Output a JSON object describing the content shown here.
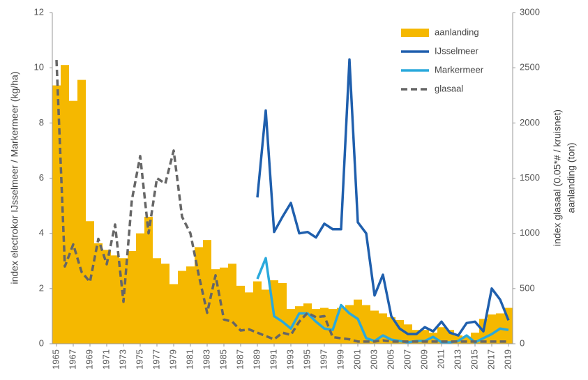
{
  "chart_data": {
    "type": "combo",
    "y_label": "index electrokor IJsselmeer / Markermeer (kg/ha)",
    "y2_label": [
      "index glasaal  (0.05*# / kruisnet)",
      "aanlanding (ton)"
    ],
    "x": [
      1965,
      1966,
      1967,
      1968,
      1969,
      1970,
      1971,
      1972,
      1973,
      1974,
      1975,
      1976,
      1977,
      1978,
      1979,
      1980,
      1981,
      1982,
      1983,
      1984,
      1985,
      1986,
      1987,
      1988,
      1989,
      1990,
      1991,
      1992,
      1993,
      1994,
      1995,
      1996,
      1997,
      1998,
      1999,
      2000,
      2001,
      2002,
      2003,
      2004,
      2005,
      2006,
      2007,
      2008,
      2009,
      2010,
      2011,
      2012,
      2013,
      2014,
      2015,
      2016,
      2017,
      2018,
      2019
    ],
    "xlim": [
      1964.5,
      2019.5
    ],
    "xticks": [
      1965,
      1967,
      1969,
      1971,
      1973,
      1975,
      1977,
      1979,
      1981,
      1983,
      1985,
      1987,
      1989,
      1991,
      1993,
      1995,
      1997,
      1999,
      2001,
      2003,
      2005,
      2007,
      2009,
      2011,
      2013,
      2015,
      2017,
      2019
    ],
    "ylim": [
      0,
      12
    ],
    "yticks": [
      0,
      2,
      4,
      6,
      8,
      10,
      12
    ],
    "y2lim": [
      0,
      3000
    ],
    "y2ticks": [
      0,
      500,
      1000,
      1500,
      2000,
      2500,
      3000
    ],
    "legend": "upper right",
    "series": [
      {
        "name": "aanlanding",
        "type": "bar",
        "axis": "y2",
        "color": "#f5b800",
        "values": [
          2340,
          2525,
          2200,
          2390,
          1110,
          910,
          850,
          800,
          775,
          840,
          1000,
          1150,
          775,
          725,
          540,
          660,
          700,
          875,
          940,
          675,
          690,
          725,
          525,
          465,
          565,
          490,
          575,
          550,
          315,
          340,
          365,
          315,
          325,
          315,
          325,
          350,
          400,
          350,
          300,
          275,
          240,
          215,
          175,
          125,
          125,
          100,
          150,
          125,
          75,
          65,
          100,
          225,
          265,
          275,
          325
        ]
      },
      {
        "name": "IJsselmeer",
        "type": "line",
        "axis": "y",
        "color": "#1f5fad",
        "values": [
          null,
          null,
          null,
          null,
          null,
          null,
          null,
          null,
          null,
          null,
          null,
          null,
          null,
          null,
          null,
          null,
          null,
          null,
          null,
          null,
          null,
          null,
          null,
          null,
          5.3,
          8.45,
          4.05,
          4.6,
          5.1,
          4.0,
          4.05,
          3.85,
          4.35,
          4.15,
          4.15,
          10.3,
          4.4,
          4.0,
          1.75,
          2.5,
          1.0,
          0.55,
          0.35,
          0.35,
          0.6,
          0.45,
          0.8,
          0.4,
          0.3,
          0.75,
          0.8,
          0.45,
          2.0,
          1.6,
          0.85
        ]
      },
      {
        "name": "Markermeer",
        "type": "line",
        "axis": "y",
        "color": "#2aa9dc",
        "values": [
          null,
          null,
          null,
          null,
          null,
          null,
          null,
          null,
          null,
          null,
          null,
          null,
          null,
          null,
          null,
          null,
          null,
          null,
          null,
          null,
          null,
          null,
          null,
          null,
          2.35,
          3.1,
          1.0,
          0.8,
          0.55,
          1.1,
          1.1,
          0.8,
          0.55,
          0.5,
          1.4,
          1.1,
          0.9,
          0.2,
          0.1,
          0.3,
          0.15,
          0.1,
          0.05,
          0.1,
          0.1,
          0.25,
          0.05,
          0.05,
          0.1,
          0.3,
          0.05,
          0.2,
          0.35,
          0.55,
          0.5
        ]
      },
      {
        "name": "glasaal",
        "type": "line",
        "axis": "y2",
        "color": "#666666",
        "dash": true,
        "values": [
          2570,
          700,
          900,
          650,
          560,
          950,
          720,
          1080,
          380,
          1300,
          1700,
          1000,
          1500,
          1450,
          1750,
          1150,
          1000,
          620,
          280,
          620,
          220,
          200,
          120,
          130,
          100,
          70,
          40,
          100,
          80,
          200,
          280,
          240,
          250,
          60,
          50,
          40,
          20,
          20,
          20,
          30,
          20,
          20,
          20,
          20,
          20,
          20,
          20,
          20,
          20,
          20,
          20,
          20,
          20,
          20,
          20
        ]
      }
    ]
  }
}
